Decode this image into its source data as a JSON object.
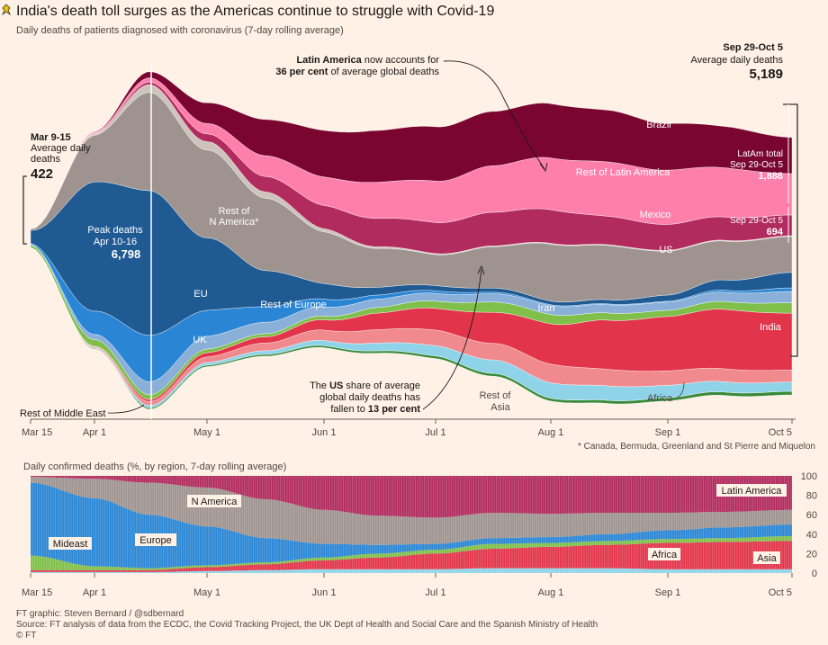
{
  "title": "India's death toll surges as the Americas continue to struggle with Covid-19",
  "subtitle": "Daily deaths of patients diagnosed with coronavirus (7-day rolling average)",
  "annotations": {
    "start_head": "Mar 9-15",
    "start_sub1": "Average daily",
    "start_sub2": "deaths",
    "start_value": "422",
    "end_head": "Sep 29-Oct 5",
    "end_sub": "Average daily deaths",
    "end_value": "5,189",
    "latam_bold": "Latin America",
    "latam_rest1": " now accounts for",
    "latam_bold2": "36 per cent",
    "latam_rest2": " of average global deaths",
    "peak1": "Peak deaths",
    "peak2": "Apr 10-16",
    "peak_value": "6,798",
    "us_line1a": "The ",
    "us_line1b": "US",
    "us_line1c": " share of average",
    "us_line2": "global daily deaths has",
    "us_line3a": "fallen to ",
    "us_line3b": "13 per cent",
    "latam_total1": "LatAm total",
    "latam_total2": "Sep 29-Oct 5",
    "latam_total_value": "1,888",
    "us_total": "Sep 29-Oct 5",
    "us_total_value": "694",
    "footnote": "* Canada, Bermuda, Greenland and St Pierre and Miquelon"
  },
  "labels": {
    "brazil": "Brazil",
    "rest_latam": "Rest of Latin America",
    "mexico": "Mexico",
    "us": "US",
    "rest_na1": "Rest of",
    "rest_na2": "N America*",
    "eu": "EU",
    "uk": "UK",
    "rest_europe": "Rest of Europe",
    "iran": "Iran",
    "india": "India",
    "rest_asia1": "Rest of",
    "rest_asia2": "Asia",
    "africa": "Africa",
    "rest_me": "Rest of Middle East"
  },
  "x_ticks": [
    "Mar 15",
    "Apr 1",
    "May 1",
    "Jun 1",
    "Jul 1",
    "Aug 1",
    "Sep 1",
    "Oct 5"
  ],
  "colors": {
    "background": "#fff1e5",
    "brazil": "#7a0630",
    "rest_latam": "#ff7fab",
    "mexico": "#b12b5e",
    "us": "#9e938f",
    "rest_na": "#cdc3bb",
    "eu": "#1f5a93",
    "uk": "#2a86d5",
    "rest_europe": "#8ab0d9",
    "iran": "#7fbf4a",
    "mideast": "#3a8a3a",
    "india": "#e2344a",
    "rest_asia": "#f08a8f",
    "africa": "#8fd3e8"
  },
  "chart_data": [
    {
      "type": "area",
      "title": "India's death toll surges as the Americas continue to struggle with Covid-19",
      "subtitle": "Daily deaths of patients diagnosed with coronavirus (7-day rolling average)",
      "x": [
        "Mar 15",
        "Apr 1",
        "Apr 15",
        "May 1",
        "May 15",
        "Jun 1",
        "Jun 15",
        "Jul 1",
        "Jul 15",
        "Aug 1",
        "Aug 15",
        "Sep 1",
        "Sep 15",
        "Oct 5"
      ],
      "series": [
        {
          "name": "Rest of Middle East",
          "values": [
            5,
            15,
            30,
            30,
            35,
            40,
            45,
            50,
            55,
            55,
            60,
            60,
            65,
            70
          ]
        },
        {
          "name": "Africa",
          "values": [
            5,
            10,
            40,
            50,
            70,
            100,
            150,
            200,
            260,
            300,
            280,
            240,
            200,
            180
          ]
        },
        {
          "name": "Rest of Asia",
          "values": [
            5,
            20,
            80,
            110,
            150,
            200,
            260,
            300,
            320,
            360,
            320,
            280,
            250,
            230
          ]
        },
        {
          "name": "India",
          "values": [
            2,
            10,
            40,
            80,
            120,
            200,
            320,
            420,
            600,
            780,
            950,
            1050,
            1150,
            1100
          ]
        },
        {
          "name": "Iran",
          "values": [
            50,
            130,
            90,
            70,
            60,
            70,
            110,
            140,
            200,
            180,
            140,
            120,
            150,
            200
          ]
        },
        {
          "name": "Rest of Europe",
          "values": [
            10,
            100,
            250,
            250,
            220,
            180,
            160,
            150,
            160,
            170,
            160,
            160,
            180,
            220
          ]
        },
        {
          "name": "UK",
          "values": [
            20,
            450,
            900,
            500,
            300,
            150,
            80,
            50,
            30,
            20,
            15,
            15,
            40,
            70
          ]
        },
        {
          "name": "EU",
          "values": [
            250,
            2500,
            2800,
            1400,
            700,
            300,
            150,
            100,
            80,
            70,
            80,
            120,
            200,
            300
          ]
        },
        {
          "name": "US",
          "values": [
            30,
            900,
            1900,
            1700,
            1400,
            1000,
            750,
            600,
            800,
            1100,
            1050,
            850,
            750,
            694
          ]
        },
        {
          "name": "Rest of N America*",
          "values": [
            2,
            30,
            150,
            160,
            120,
            60,
            30,
            20,
            15,
            15,
            15,
            15,
            15,
            15
          ]
        },
        {
          "name": "Mexico",
          "values": [
            0,
            10,
            50,
            150,
            300,
            450,
            550,
            600,
            650,
            650,
            550,
            500,
            450,
            400
          ]
        },
        {
          "name": "Rest of Latin America",
          "values": [
            2,
            20,
            80,
            200,
            400,
            550,
            700,
            800,
            900,
            1000,
            1050,
            1050,
            950,
            800
          ]
        },
        {
          "name": "Brazil",
          "values": [
            0,
            10,
            120,
            400,
            700,
            900,
            1000,
            1050,
            1050,
            1050,
            1000,
            900,
            800,
            700
          ]
        }
      ],
      "ylabel": "",
      "annotations": [
        "Mar 9-15 average daily deaths 422",
        "Sep 29-Oct 5 average daily deaths 5,189",
        "Peak deaths Apr 10-16 6,798"
      ]
    },
    {
      "type": "area",
      "title": "Daily confirmed deaths (%, by region, 7-day rolling average)",
      "x": [
        "Mar 15",
        "Apr 1",
        "Apr 15",
        "May 1",
        "May 15",
        "Jun 1",
        "Jun 15",
        "Jul 1",
        "Jul 15",
        "Aug 1",
        "Aug 15",
        "Sep 1",
        "Sep 15",
        "Oct 5"
      ],
      "ylim": [
        0,
        100
      ],
      "y_ticks": [
        "0",
        "20",
        "40",
        "60",
        "80",
        "100"
      ],
      "series": [
        {
          "name": "Africa",
          "values": [
            1,
            1,
            1,
            2,
            3,
            4,
            4,
            4,
            5,
            5,
            5,
            4,
            4,
            4
          ]
        },
        {
          "name": "Asia",
          "values": [
            2,
            2,
            2,
            4,
            6,
            9,
            12,
            16,
            20,
            22,
            24,
            27,
            28,
            29
          ]
        },
        {
          "name": "Mideast",
          "values": [
            15,
            4,
            2,
            2,
            2,
            3,
            4,
            4,
            5,
            4,
            4,
            4,
            4,
            5
          ]
        },
        {
          "name": "Europe",
          "values": [
            75,
            70,
            55,
            40,
            25,
            14,
            9,
            6,
            6,
            6,
            7,
            9,
            11,
            12
          ]
        },
        {
          "name": "N America",
          "values": [
            6,
            20,
            33,
            40,
            40,
            35,
            30,
            27,
            26,
            24,
            22,
            18,
            16,
            15
          ]
        },
        {
          "name": "Latin America",
          "values": [
            1,
            3,
            7,
            12,
            24,
            35,
            41,
            43,
            38,
            39,
            38,
            38,
            37,
            35
          ]
        }
      ]
    }
  ],
  "lower": {
    "title": "Daily confirmed deaths (%, by region, 7-day rolling average)",
    "labels": {
      "latam": "Latin America",
      "na": "N America",
      "europe": "Europe",
      "mideast": "Mideast",
      "africa": "Africa",
      "asia": "Asia"
    }
  },
  "footer": {
    "credit": "FT graphic: Steven Bernard / @sdbernard",
    "source": "Source: FT analysis of data from the ECDC, the Covid Tracking Project, the UK Dept of Health and Social Care and the Spanish Ministry of Health",
    "copyright": "© FT"
  }
}
